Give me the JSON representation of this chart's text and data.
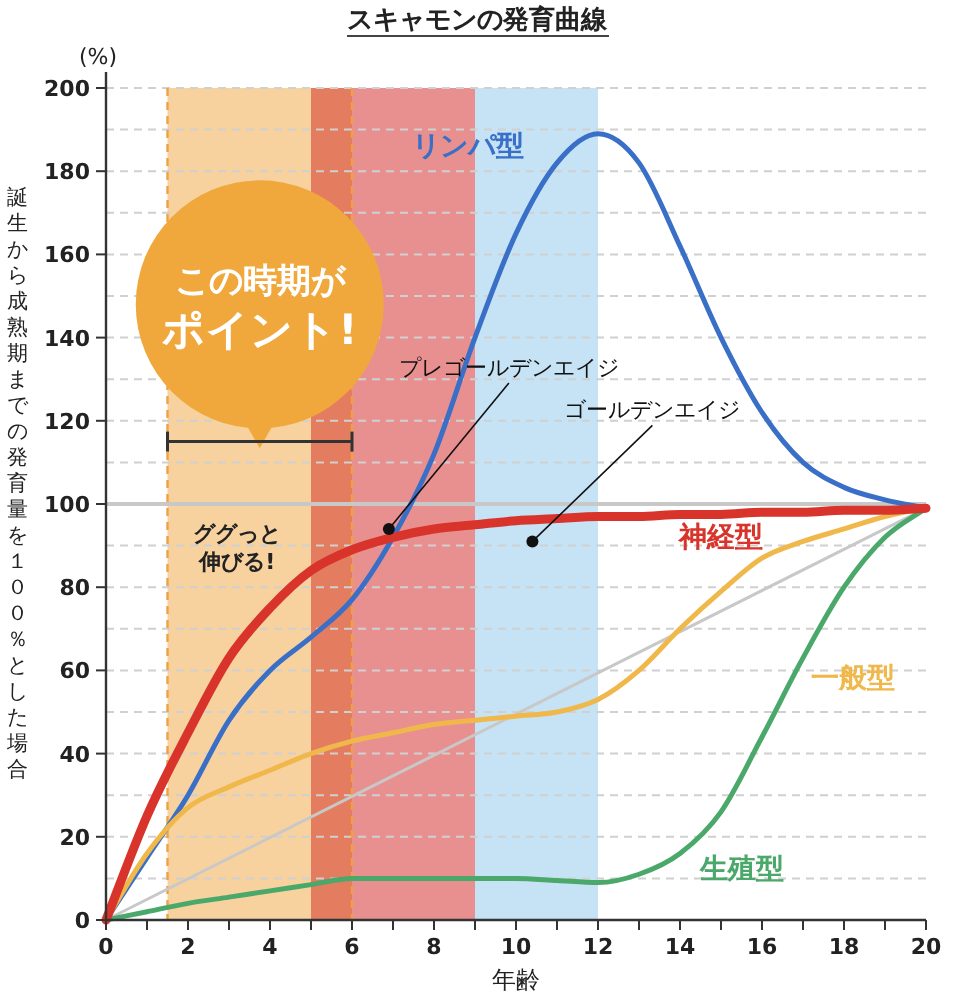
{
  "chart_data": {
    "type": "line",
    "title": "スキャモンの発育曲線",
    "xlabel": "年齢",
    "ylabel": "誕生から成熟期までの発育量を１００％とした場合",
    "annotations": [
      "(%)",
      "この時期がポイント!",
      "ググっと伸びる!",
      {
        "text": "プレゴールデンエイジ",
        "x": 6.9,
        "y": 94
      },
      {
        "text": "ゴールデンエイジ",
        "x": 10.4,
        "y": 91
      }
    ],
    "x": [
      0,
      1,
      2,
      3,
      4,
      5,
      6,
      7,
      8,
      9,
      10,
      11,
      12,
      13,
      14,
      15,
      16,
      17,
      18,
      19,
      20
    ],
    "series": [
      {
        "color": "#c8c8c8",
        "x": [
          0,
          20
        ],
        "values": [
          0,
          99
        ]
      },
      {
        "name": "リンパ型",
        "color": "#3a6fc8",
        "values": [
          0,
          15,
          30,
          48,
          60,
          68,
          77,
          92,
          112,
          140,
          165,
          182,
          189,
          182,
          162,
          140,
          122,
          110,
          104,
          101,
          99
        ]
      },
      {
        "name": "一般型",
        "color": "#f0b84a",
        "values": [
          0,
          16,
          27,
          32,
          36,
          40,
          43,
          45,
          47,
          48,
          49,
          50,
          53,
          60,
          70,
          79,
          87,
          91,
          94,
          97,
          99
        ]
      },
      {
        "name": "生殖型",
        "color": "#4aa86a",
        "values": [
          0,
          2,
          4,
          5.5,
          7,
          8.5,
          10,
          10,
          10,
          10,
          10,
          9.5,
          9,
          11,
          16,
          26,
          44,
          63,
          80,
          92,
          99
        ]
      },
      {
        "name": "神経型",
        "color": "#d9342b",
        "values": [
          0,
          25,
          45,
          63,
          75,
          84,
          89,
          92,
          94,
          95,
          96,
          96.5,
          97,
          97,
          97.5,
          97.5,
          98,
          98,
          98.5,
          98.5,
          99
        ]
      }
    ],
    "bands": [
      {
        "axis": "x",
        "from": 1.5,
        "to": 5,
        "color": "#f7d29e"
      },
      {
        "axis": "x",
        "from": 5,
        "to": 6,
        "color": "#e47d5f"
      },
      {
        "axis": "x",
        "from": 6,
        "to": 9,
        "color": "#e89090"
      },
      {
        "axis": "x",
        "from": 9,
        "to": 12,
        "color": "#c5e3f5"
      }
    ],
    "ref_lines": [
      {
        "axis": "y",
        "value": 100,
        "color": "#c8c8c8",
        "line_style": "solid"
      },
      {
        "axis": "x",
        "value": 1.5,
        "color": "#f0a040",
        "line_style": "dashed"
      },
      {
        "axis": "x",
        "value": 6,
        "color": "#f0a040",
        "line_style": "dashed"
      }
    ],
    "xlim": [
      0,
      20
    ],
    "ylim": [
      0,
      200
    ],
    "xticks": [
      0,
      {
        "value": 1,
        "label": null
      },
      2,
      {
        "value": 3,
        "label": null
      },
      4,
      {
        "value": 5,
        "label": null
      },
      6,
      {
        "value": 7,
        "label": null
      },
      8,
      {
        "value": 9,
        "label": null
      },
      10,
      {
        "value": 11,
        "label": null
      },
      12,
      {
        "value": 13,
        "label": null
      },
      14,
      {
        "value": 15,
        "label": null
      },
      16,
      {
        "value": 17,
        "label": null
      },
      18,
      {
        "value": 19,
        "label": null
      },
      20
    ],
    "yticks": [
      0,
      {
        "value": 10,
        "label": null
      },
      20,
      {
        "value": 30,
        "label": null
      },
      40,
      {
        "value": 50,
        "label": null
      },
      60,
      {
        "value": 70,
        "label": null
      },
      80,
      {
        "value": 90,
        "label": null
      },
      100,
      {
        "value": 110,
        "label": null
      },
      120,
      {
        "value": 130,
        "label": null
      },
      140,
      {
        "value": 150,
        "label": null
      },
      160,
      {
        "value": 170,
        "label": null
      },
      180,
      {
        "value": 190,
        "label": null
      },
      200
    ],
    "grid": "y",
    "marker": "none",
    "line_style": "solid"
  }
}
